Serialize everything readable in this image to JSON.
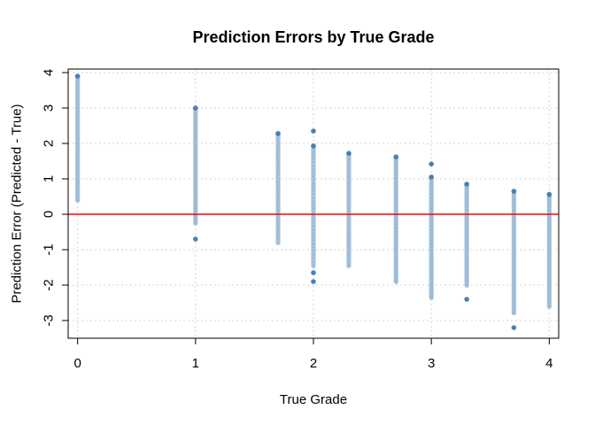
{
  "chart_data": {
    "type": "scatter",
    "title": "Prediction Errors by True Grade",
    "xlabel": "True Grade",
    "ylabel": "Prediction Error (Predicted - True)",
    "xlim": [
      -0.08,
      4.08
    ],
    "ylim": [
      -3.5,
      4.1
    ],
    "x_ticks": [
      0,
      1,
      2,
      3,
      4
    ],
    "y_ticks": [
      -3,
      -2,
      -1,
      0,
      1,
      2,
      3,
      4
    ],
    "x_tick_labels": [
      "0",
      "1",
      "2",
      "3",
      "4"
    ],
    "y_tick_labels": [
      "-3",
      "-2",
      "-1",
      "0",
      "1",
      "2",
      "3",
      "4"
    ],
    "grid": true,
    "point_color": "#4682b4",
    "reference_line": {
      "y": 0,
      "color": "#ff0000"
    },
    "series": [
      {
        "points": [
          {
            "x": 0,
            "min": 0.4,
            "max": 3.9
          },
          {
            "x": 1,
            "min": -0.25,
            "max": 3.0,
            "outliers": [
              -0.7
            ]
          },
          {
            "x": 1.7,
            "min": -0.8,
            "max": 2.28
          },
          {
            "x": 2,
            "min": -1.45,
            "max": 1.93,
            "outliers": [
              2.35,
              -1.65,
              -1.9
            ]
          },
          {
            "x": 2.3,
            "min": -1.45,
            "max": 1.72
          },
          {
            "x": 2.7,
            "min": -1.9,
            "max": 1.62
          },
          {
            "x": 3,
            "min": -2.35,
            "max": 1.05,
            "outliers": [
              1.42
            ]
          },
          {
            "x": 3.3,
            "min": -2.0,
            "max": 0.85,
            "outliers": [
              -2.4
            ]
          },
          {
            "x": 3.7,
            "min": -2.78,
            "max": 0.65,
            "outliers": [
              -3.2
            ]
          },
          {
            "x": 4,
            "min": -2.6,
            "max": 0.56
          }
        ]
      }
    ]
  }
}
